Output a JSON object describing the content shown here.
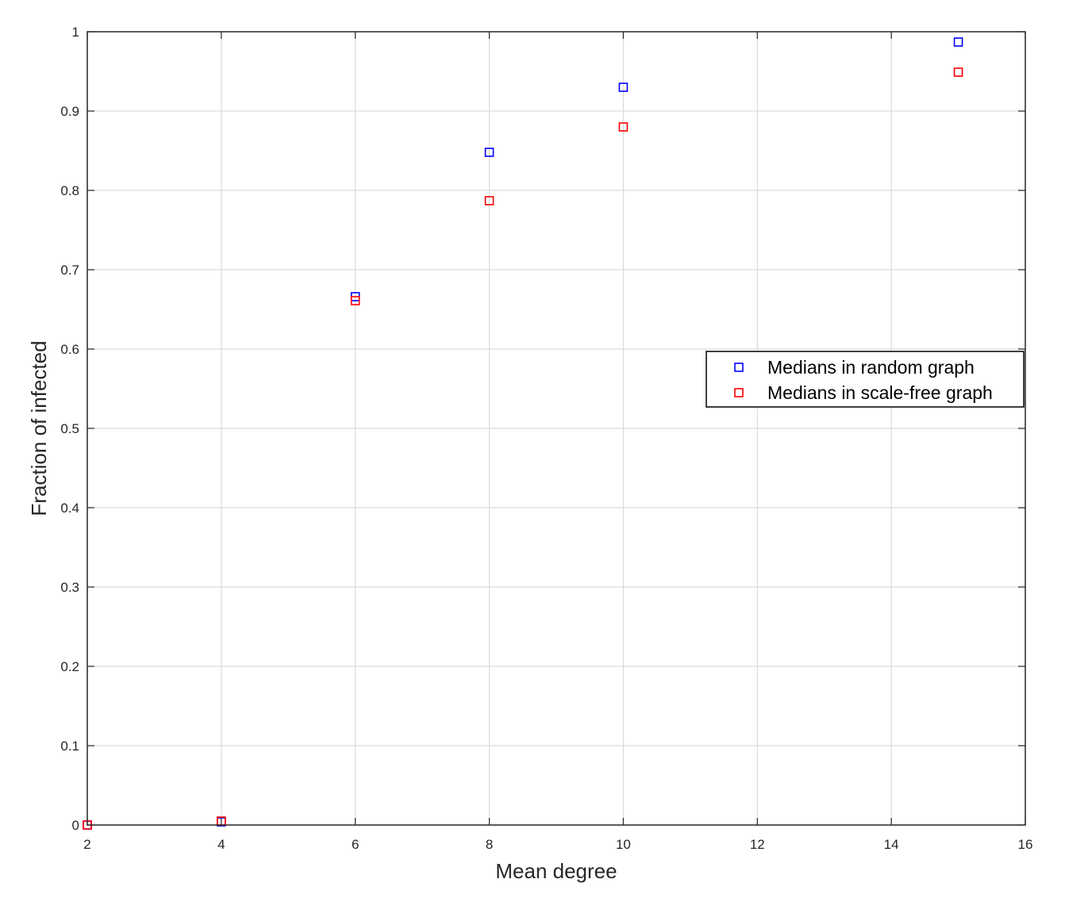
{
  "chart_data": {
    "type": "scatter",
    "title": "",
    "xlabel": "Mean degree",
    "ylabel": "Fraction of infected",
    "xlim": [
      2,
      16
    ],
    "ylim": [
      0,
      1
    ],
    "xticks": [
      2,
      4,
      6,
      8,
      10,
      12,
      14,
      16
    ],
    "yticks": [
      0,
      0.1,
      0.2,
      0.3,
      0.4,
      0.5,
      0.6,
      0.7,
      0.8,
      0.9,
      1
    ],
    "xtick_labels": [
      "2",
      "4",
      "6",
      "8",
      "10",
      "12",
      "14",
      "16"
    ],
    "ytick_labels": [
      "0",
      "0.1",
      "0.2",
      "0.3",
      "0.4",
      "0.5",
      "0.6",
      "0.7",
      "0.8",
      "0.9",
      "1"
    ],
    "grid": true,
    "legend_position": "right",
    "marker": "square",
    "series": [
      {
        "name": "Medians in random graph",
        "color": "#0000ff",
        "x": [
          2,
          4,
          6,
          8,
          10,
          15
        ],
        "y": [
          0,
          0.004,
          0.666,
          0.848,
          0.93,
          0.987
        ]
      },
      {
        "name": "Medians in scale-free graph",
        "color": "#ff0000",
        "x": [
          2,
          4,
          6,
          8,
          10,
          15
        ],
        "y": [
          0,
          0.005,
          0.661,
          0.787,
          0.88,
          0.949
        ]
      }
    ]
  }
}
